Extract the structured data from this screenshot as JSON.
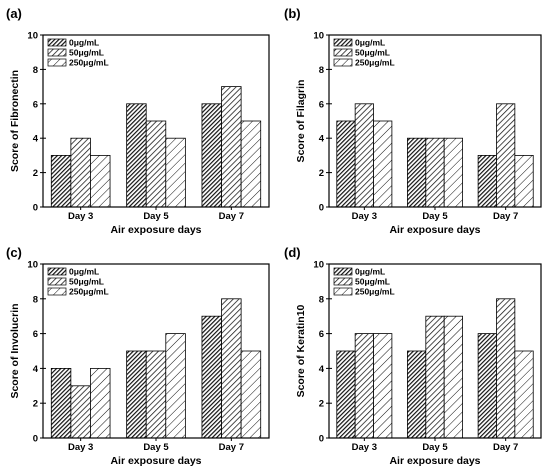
{
  "colors": {
    "series_0": "#3a3a3a",
    "series_1": "#d8d8d8",
    "series_2": "#ffffff",
    "stroke": "#000000"
  },
  "chart_data": [
    {
      "type": "bar",
      "panel_label": "(a)",
      "categories": [
        "Day 3",
        "Day 5",
        "Day 7"
      ],
      "series": [
        {
          "name": "0μg/mL",
          "values": [
            3,
            6,
            6
          ],
          "pattern": "dense-hatch"
        },
        {
          "name": "50μg/mL",
          "values": [
            4,
            5,
            7
          ],
          "pattern": "hatch"
        },
        {
          "name": "250μg/mL",
          "values": [
            3,
            4,
            5
          ],
          "pattern": "sparse-hatch"
        }
      ],
      "xlabel": "Air exposure days",
      "ylabel": "Score of Fibronectin",
      "ylim": [
        0,
        10
      ],
      "yticks": [
        "0",
        "2",
        "4",
        "6",
        "8",
        "10"
      ],
      "legend": "top-left",
      "grid": false
    },
    {
      "type": "bar",
      "panel_label": "(b)",
      "categories": [
        "Day 3",
        "Day 5",
        "Day 7"
      ],
      "series": [
        {
          "name": "0μg/mL",
          "values": [
            5,
            4,
            3
          ],
          "pattern": "dense-hatch"
        },
        {
          "name": "50μg/mL",
          "values": [
            6,
            4,
            6
          ],
          "pattern": "hatch"
        },
        {
          "name": "250μg/mL",
          "values": [
            5,
            4,
            3
          ],
          "pattern": "sparse-hatch"
        }
      ],
      "xlabel": "Air exposure days",
      "ylabel": "Score of Filagrin",
      "ylim": [
        0,
        10
      ],
      "yticks": [
        "0",
        "2",
        "4",
        "6",
        "8",
        "10"
      ],
      "legend": "top-left",
      "grid": false
    },
    {
      "type": "bar",
      "panel_label": "(c)",
      "categories": [
        "Day 3",
        "Day 5",
        "Day 7"
      ],
      "series": [
        {
          "name": "0μg/mL",
          "values": [
            4,
            5,
            7
          ],
          "pattern": "dense-hatch"
        },
        {
          "name": "50μg/mL",
          "values": [
            3,
            5,
            8
          ],
          "pattern": "hatch"
        },
        {
          "name": "250μg/mL",
          "values": [
            4,
            6,
            5
          ],
          "pattern": "sparse-hatch"
        }
      ],
      "xlabel": "Air exposure days",
      "ylabel": "Score of Involucrin",
      "ylim": [
        0,
        10
      ],
      "yticks": [
        "0",
        "2",
        "4",
        "6",
        "8",
        "10"
      ],
      "legend": "top-left",
      "grid": false
    },
    {
      "type": "bar",
      "panel_label": "(d)",
      "categories": [
        "Day 3",
        "Day 5",
        "Day 7"
      ],
      "series": [
        {
          "name": "0μg/mL",
          "values": [
            5,
            5,
            6
          ],
          "pattern": "dense-hatch"
        },
        {
          "name": "50μg/mL",
          "values": [
            6,
            7,
            8
          ],
          "pattern": "hatch"
        },
        {
          "name": "250μg/mL",
          "values": [
            6,
            7,
            5
          ],
          "pattern": "sparse-hatch"
        }
      ],
      "xlabel": "Air exposure days",
      "ylabel": "Score of Keratin10",
      "ylim": [
        0,
        10
      ],
      "yticks": [
        "0",
        "2",
        "4",
        "6",
        "8",
        "10"
      ],
      "legend": "top-left",
      "grid": false
    }
  ]
}
